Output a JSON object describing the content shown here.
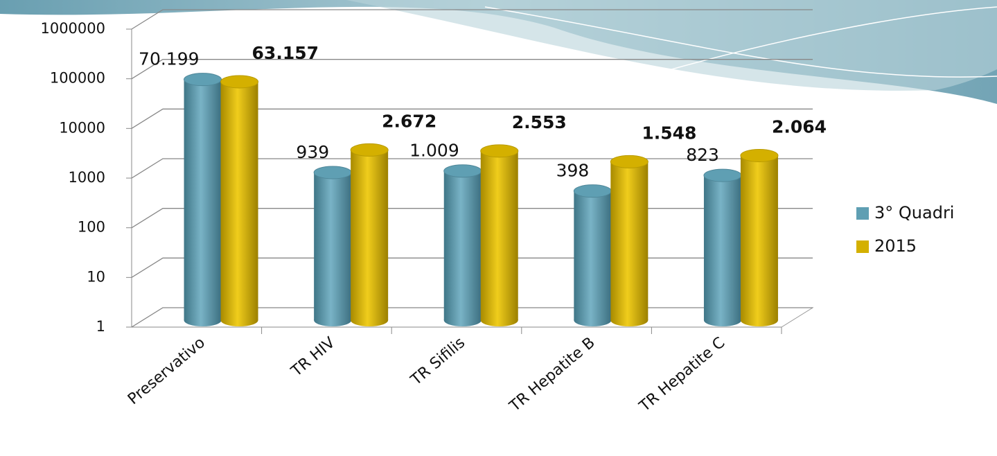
{
  "chart_data": {
    "type": "bar",
    "log_scale": true,
    "grid": true,
    "legend": "right",
    "categories": [
      "Preservativo",
      "TR HIV",
      "TR Sifilis",
      "TR Hepatite B",
      "TR Hepatite C"
    ],
    "series": [
      {
        "name": "3° Quadri",
        "color": "#5f9fb3",
        "values": [
          70199,
          939,
          1009,
          398,
          823
        ],
        "value_labels": [
          "70.199",
          "939",
          "1.009",
          "398",
          "823"
        ]
      },
      {
        "name": "2015",
        "color": "#d4b000",
        "values": [
          63157,
          2672,
          2553,
          1548,
          2064
        ],
        "value_labels": [
          "63.157",
          "2.672",
          "2.553",
          "1.548",
          "2.064"
        ]
      }
    ],
    "ylim": [
      1,
      1000000
    ],
    "yticks": [
      1,
      10,
      100,
      1000,
      10000,
      100000,
      1000000
    ]
  }
}
